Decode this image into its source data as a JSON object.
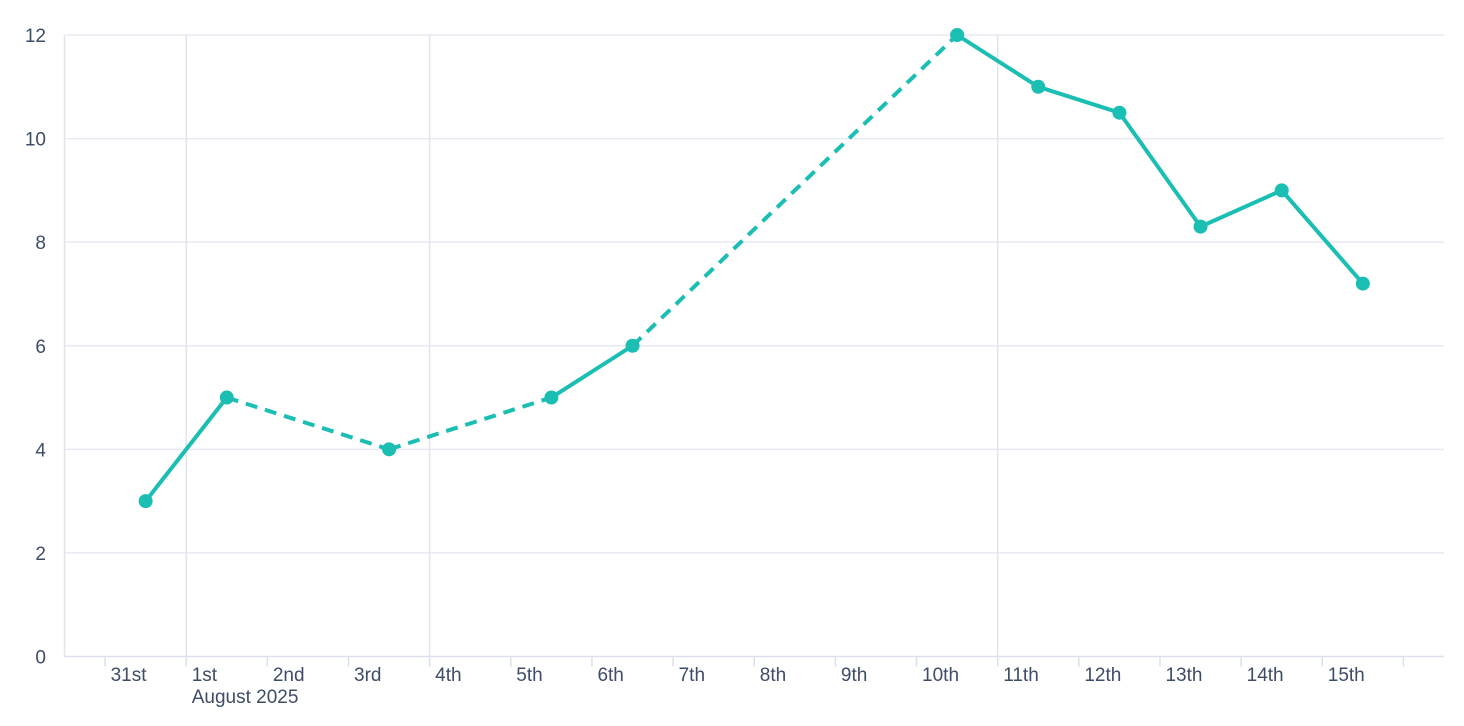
{
  "chart_data": {
    "type": "line",
    "title": "",
    "legend": "none",
    "x_axis": {
      "tick_labels": [
        "31st",
        "1st",
        "2nd",
        "3rd",
        "4th",
        "5th",
        "6th",
        "7th",
        "8th",
        "9th",
        "10th",
        "11th",
        "12th",
        "13th",
        "14th",
        "15th"
      ],
      "secondary_label": "August 2025",
      "secondary_label_under": "1st",
      "unlabeled_trailing_tick": true
    },
    "y_axis": {
      "min": 0,
      "max": 12,
      "tick_interval": 2,
      "tick_labels": [
        "0",
        "2",
        "4",
        "6",
        "8",
        "10",
        "12"
      ]
    },
    "grid": {
      "horizontal_values": [
        0,
        2,
        4,
        6,
        8,
        10,
        12
      ],
      "vertical_at_labels": [
        "1st",
        "4th",
        "11th"
      ]
    },
    "series": [
      {
        "name": "value-series",
        "color": "#1bbeb3",
        "marker_radius": 7,
        "line_width": 4,
        "points": [
          {
            "x_label": "31st",
            "day_index": 0,
            "value": 3
          },
          {
            "x_label": "1st",
            "day_index": 1,
            "value": 5
          },
          {
            "x_label": "3rd",
            "day_index": 3,
            "value": 4
          },
          {
            "x_label": "5th",
            "day_index": 5,
            "value": 5
          },
          {
            "x_label": "6th",
            "day_index": 6,
            "value": 6
          },
          {
            "x_label": "10th",
            "day_index": 10,
            "value": 12
          },
          {
            "x_label": "11th",
            "day_index": 11,
            "value": 11
          },
          {
            "x_label": "12th",
            "day_index": 12,
            "value": 10.5
          },
          {
            "x_label": "13th",
            "day_index": 13,
            "value": 8.3
          },
          {
            "x_label": "14th",
            "day_index": 14,
            "value": 9
          },
          {
            "x_label": "15th",
            "day_index": 15,
            "value": 7.2
          }
        ],
        "segment_styles": [
          "solid",
          "dashed",
          "dashed",
          "solid",
          "dashed",
          "solid",
          "solid",
          "solid",
          "solid",
          "solid"
        ]
      }
    ]
  },
  "colors": {
    "series": "#1bbeb3",
    "grid_horizontal": "#e7eaf2",
    "grid_vertical": "#e0e4ef",
    "axis_line": "#dce0ec",
    "tick_mark": "#dce0ec",
    "plot_border_left": "#e0e4ef",
    "label_text": "#3e4c66",
    "background": "#ffffff"
  }
}
